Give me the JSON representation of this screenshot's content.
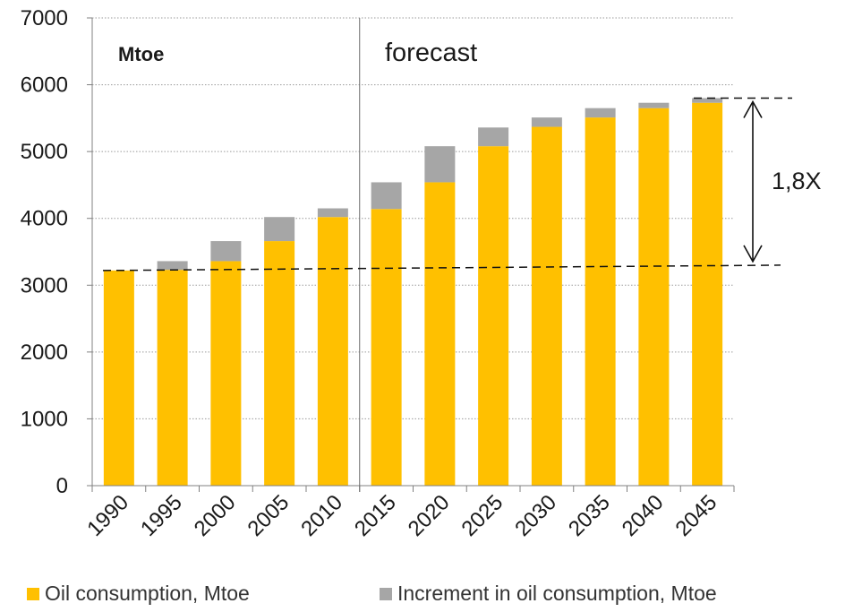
{
  "chart_data": {
    "type": "bar",
    "stacked": true,
    "categories": [
      "1990",
      "1995",
      "2000",
      "2005",
      "2010",
      "2015",
      "2020",
      "2025",
      "2030",
      "2035",
      "2040",
      "2045"
    ],
    "series": [
      {
        "name": "Oil consumption, Mtoe",
        "color": "#FFC000",
        "values": [
          3220,
          3230,
          3360,
          3660,
          4020,
          4140,
          4540,
          5080,
          5370,
          5510,
          5650,
          5730
        ]
      },
      {
        "name": "Increment in oil consumption, Mtoe",
        "color": "#A6A6A6",
        "values": [
          0,
          130,
          300,
          360,
          130,
          400,
          540,
          280,
          140,
          140,
          80,
          70
        ]
      }
    ],
    "yticks": [
      "0",
      "1000",
      "2000",
      "3000",
      "4000",
      "5000",
      "6000",
      "7000"
    ],
    "ylim": [
      0,
      7000
    ],
    "grid": true,
    "legend_position": "bottom",
    "annotations": {
      "unit_label": "Mtoe",
      "forecast_label": "forecast",
      "growth_label": "1,8X",
      "forecast_start": "2015",
      "growth_from": 3220,
      "growth_to": 5800
    }
  }
}
